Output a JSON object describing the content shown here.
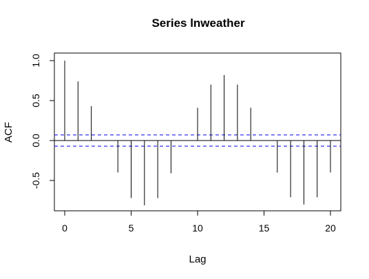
{
  "chart_data": {
    "type": "bar",
    "title": "Series  lnweather",
    "xlabel": "Lag",
    "ylabel": "ACF",
    "xlim": [
      -0.8,
      20.8
    ],
    "ylim": [
      -0.8,
      1.0
    ],
    "x_ticks": [
      "0",
      "5",
      "10",
      "15",
      "20"
    ],
    "y_ticks": [
      "-0.5",
      "0.0",
      "0.5",
      "1.0"
    ],
    "lags": [
      0,
      1,
      2,
      3,
      4,
      5,
      6,
      7,
      8,
      9,
      10,
      11,
      12,
      13,
      14,
      15,
      16,
      17,
      18,
      19,
      20
    ],
    "acf": [
      1.0,
      0.74,
      0.43,
      0.0,
      -0.4,
      -0.72,
      -0.81,
      -0.72,
      -0.41,
      0.0,
      0.41,
      0.7,
      0.82,
      0.7,
      0.41,
      0.0,
      -0.4,
      -0.71,
      -0.8,
      -0.71,
      -0.4
    ],
    "confidence_band": [
      0.07,
      -0.07
    ],
    "colors": {
      "spike": "#000000",
      "ci": "#0000ee",
      "zero_line": "#000000",
      "frame": "#000000"
    }
  }
}
